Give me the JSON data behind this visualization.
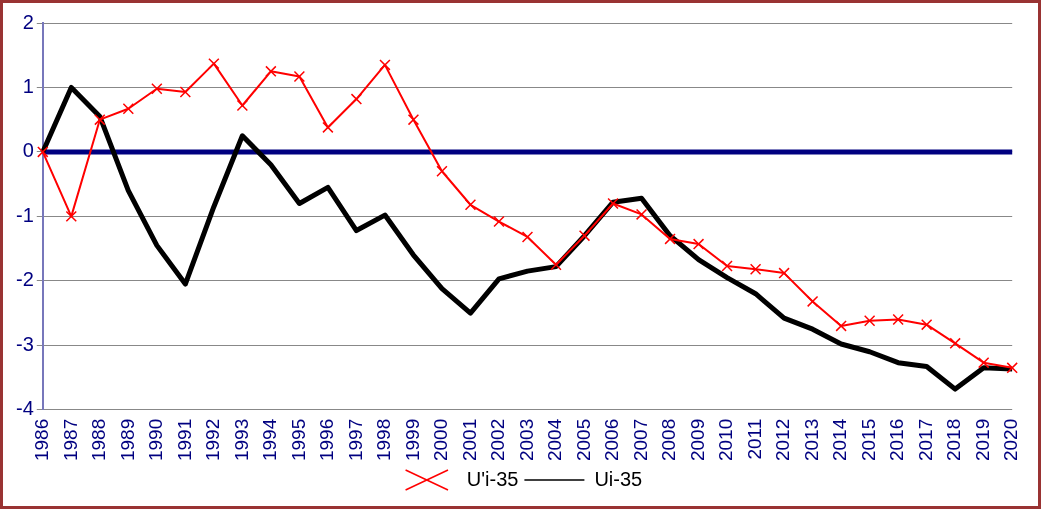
{
  "chart_data": {
    "type": "line",
    "categories": [
      "1986",
      "1987",
      "1988",
      "1989",
      "1990",
      "1991",
      "1992",
      "1993",
      "1994",
      "1995",
      "1996",
      "1997",
      "1998",
      "1999",
      "2000",
      "2001",
      "2002",
      "2003",
      "2004",
      "2005",
      "2006",
      "2007",
      "2008",
      "2009",
      "2010",
      "2011",
      "2012",
      "2013",
      "2014",
      "2015",
      "2016",
      "2017",
      "2018",
      "2019",
      "2020"
    ],
    "series": [
      {
        "name": "Ui-35",
        "color": "#000000",
        "marker": "none",
        "values": [
          0,
          1.0,
          0.55,
          -0.6,
          -1.45,
          -2.05,
          -0.85,
          0.25,
          -0.2,
          -0.8,
          -0.55,
          -1.22,
          -0.98,
          -1.6,
          -2.12,
          -2.5,
          -1.97,
          -1.85,
          -1.78,
          -1.3,
          -0.78,
          -0.72,
          -1.3,
          -1.67,
          -1.95,
          -2.2,
          -2.58,
          -2.75,
          -2.98,
          -3.1,
          -3.27,
          -3.33,
          -3.68,
          -3.35,
          -3.37
        ]
      },
      {
        "name": "U'i-35",
        "color": "#ff0000",
        "marker": "cross",
        "values": [
          0,
          -1.0,
          0.5,
          0.67,
          0.98,
          0.93,
          1.37,
          0.72,
          1.25,
          1.17,
          0.38,
          0.82,
          1.35,
          0.5,
          -0.3,
          -0.82,
          -1.08,
          -1.32,
          -1.75,
          -1.3,
          -0.8,
          -0.97,
          -1.35,
          -1.43,
          -1.77,
          -1.82,
          -1.88,
          -2.32,
          -2.7,
          -2.62,
          -2.6,
          -2.68,
          -2.97,
          -3.27,
          -3.35
        ]
      }
    ],
    "ref_lines": [
      {
        "axis": "y",
        "value": 0,
        "color": "#000080"
      }
    ],
    "ylim": [
      -4,
      2
    ],
    "yticks": [
      -4,
      -3,
      -2,
      -1,
      0,
      1,
      2
    ],
    "grid": "y",
    "legend": "bottom"
  }
}
